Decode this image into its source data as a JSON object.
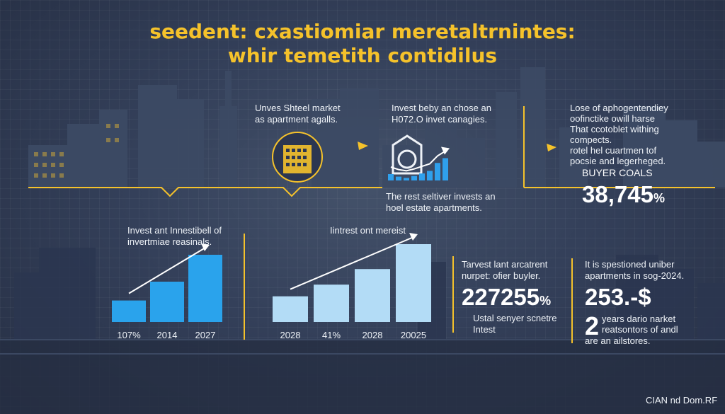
{
  "title_line1": "seedent: cxastiomiar meretaltrnintes:",
  "title_line2": "whir temetith contidilus",
  "top_blocks": {
    "a": [
      "Unves Shteel market",
      "as apartment agalls."
    ],
    "b": [
      "Invest beby an chose an",
      "H072.O invet canagies."
    ],
    "c": [
      "Lose of aphogentendiey",
      "oofinctike owill harse",
      "That ccotoblet withing",
      "compects.",
      "rotel hel cuartmen tof",
      "pocsie and legerheged."
    ]
  },
  "buyer_label": "BUYER COALS",
  "buyer_value": "38,745",
  "buyer_unit": "%",
  "mid_note": [
    "The rest seltiver invests an",
    "hoel estate apartments."
  ],
  "chart_data": [
    {
      "type": "bar",
      "title": "Invest ant Innestibell of invertmiae reasinals.",
      "categories": [
        "107%",
        "2014",
        "2027"
      ],
      "values": [
        32,
        60,
        100
      ],
      "ylim": [
        0,
        100
      ],
      "color": "#2aa3ec",
      "trend_arrow": true
    },
    {
      "type": "bar",
      "title": "Iintrest ont mereist",
      "categories": [
        "2028",
        "41%",
        "2028",
        "20025"
      ],
      "values": [
        33,
        48,
        68,
        100
      ],
      "ylim": [
        0,
        100
      ],
      "color": "#b3dcf6",
      "trend_arrow": true
    },
    {
      "type": "bar",
      "title": "",
      "categories": [
        "",
        "",
        "",
        "",
        "",
        "",
        "",
        ""
      ],
      "values": [
        20,
        12,
        8,
        14,
        22,
        30,
        55,
        70
      ],
      "ylim": [
        0,
        100
      ],
      "color": "#2fa0ec",
      "trend_arrow": true
    }
  ],
  "chart1_title": [
    "Invest ant Innestibell of",
    "invertmiae reasinals."
  ],
  "chart2_title": "Iintrest ont mereist",
  "stat_left": {
    "lines": [
      "Tarvest lant arcatrent",
      "nurpet: ofier buyler."
    ],
    "value": "227255",
    "unit": "%",
    "foot": [
      "Ustal senyer scnetre",
      "Intest"
    ]
  },
  "stat_right": {
    "lines": [
      "It is spestioned uniber",
      "apartments in sog-2024."
    ],
    "value": "253.-$",
    "big_num": "2",
    "foot": [
      "years dario narket",
      "reatsontors of andl",
      "are an ailstores."
    ]
  },
  "watermark": "CIAN nd Dom.RF",
  "colors": {
    "accent": "#f5c22b",
    "bar_blue": "#2aa3ec",
    "bar_light": "#b3dcf6",
    "background": "#34405a"
  }
}
